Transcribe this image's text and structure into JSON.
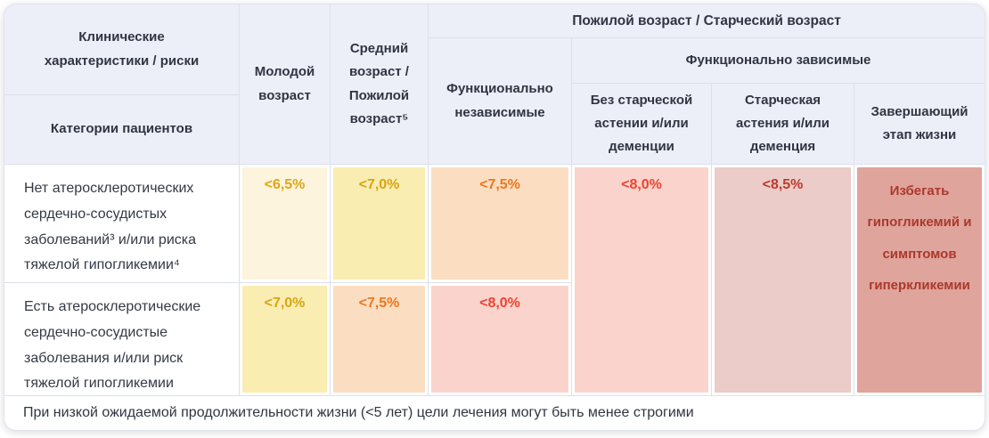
{
  "table": {
    "header": {
      "col1_top": "Клинические характеристики / риски",
      "col1_bottom": "Категории пациентов",
      "col2": "Молодой возраст",
      "col3": "Средний возраст / Пожилой возраст⁵",
      "group_elderly": "Пожилой возраст / Старческий возраст",
      "func_independent": "Функционально независимые",
      "group_dependent": "Функционально зависимые",
      "dep_no_asthenia": "Без старческой астении и/или деменции",
      "dep_asthenia": "Старческая астения и/или деменция",
      "dep_end_of_life": "Завершающий этап жизни"
    },
    "rows": [
      {
        "label": "Нет атеросклеротических сердечно-сосудистых заболеваний³ и/или риска тяжелой гипогликемии⁴",
        "values": [
          {
            "text": "<6,5%",
            "bg": "#FCF4DC",
            "color": "#DFA616"
          },
          {
            "text": "<7,0%",
            "bg": "#F9EDB2",
            "color": "#D9A411"
          },
          {
            "text": "<7,5%",
            "bg": "#FBDEC2",
            "color": "#F0761B"
          }
        ]
      },
      {
        "label": "Есть атеросклеротические сердечно-сосудистые заболевания и/или риск тяжелой гипогликемии",
        "values": [
          {
            "text": "<7,0%",
            "bg": "#F9EDB2",
            "color": "#D9A411"
          },
          {
            "text": "<7,5%",
            "bg": "#FBDEC2",
            "color": "#F0761B"
          },
          {
            "text": "<8,0%",
            "bg": "#FAD4CC",
            "color": "#EF4330"
          }
        ]
      }
    ],
    "spanned": [
      {
        "text": "<8,0%",
        "bg": "#FAD4CC",
        "color": "#EF4330"
      },
      {
        "text": "<8,5%",
        "bg": "#EBCCC8",
        "color": "#BE3A2E"
      },
      {
        "text": "Избегать гипогликемий и симптомов гиперкликемии",
        "bg": "#DFA49C",
        "color": "#AC382B"
      }
    ],
    "footer": "При низкой ожидаемой продолжительности жизни (<5 лет) цели лечения могут быть менее строгими"
  },
  "colors": {
    "header_bg": "#EDEFF8",
    "grid_line": "#DDE0EA",
    "header_text": "#2F3542",
    "body_text": "#333945"
  }
}
